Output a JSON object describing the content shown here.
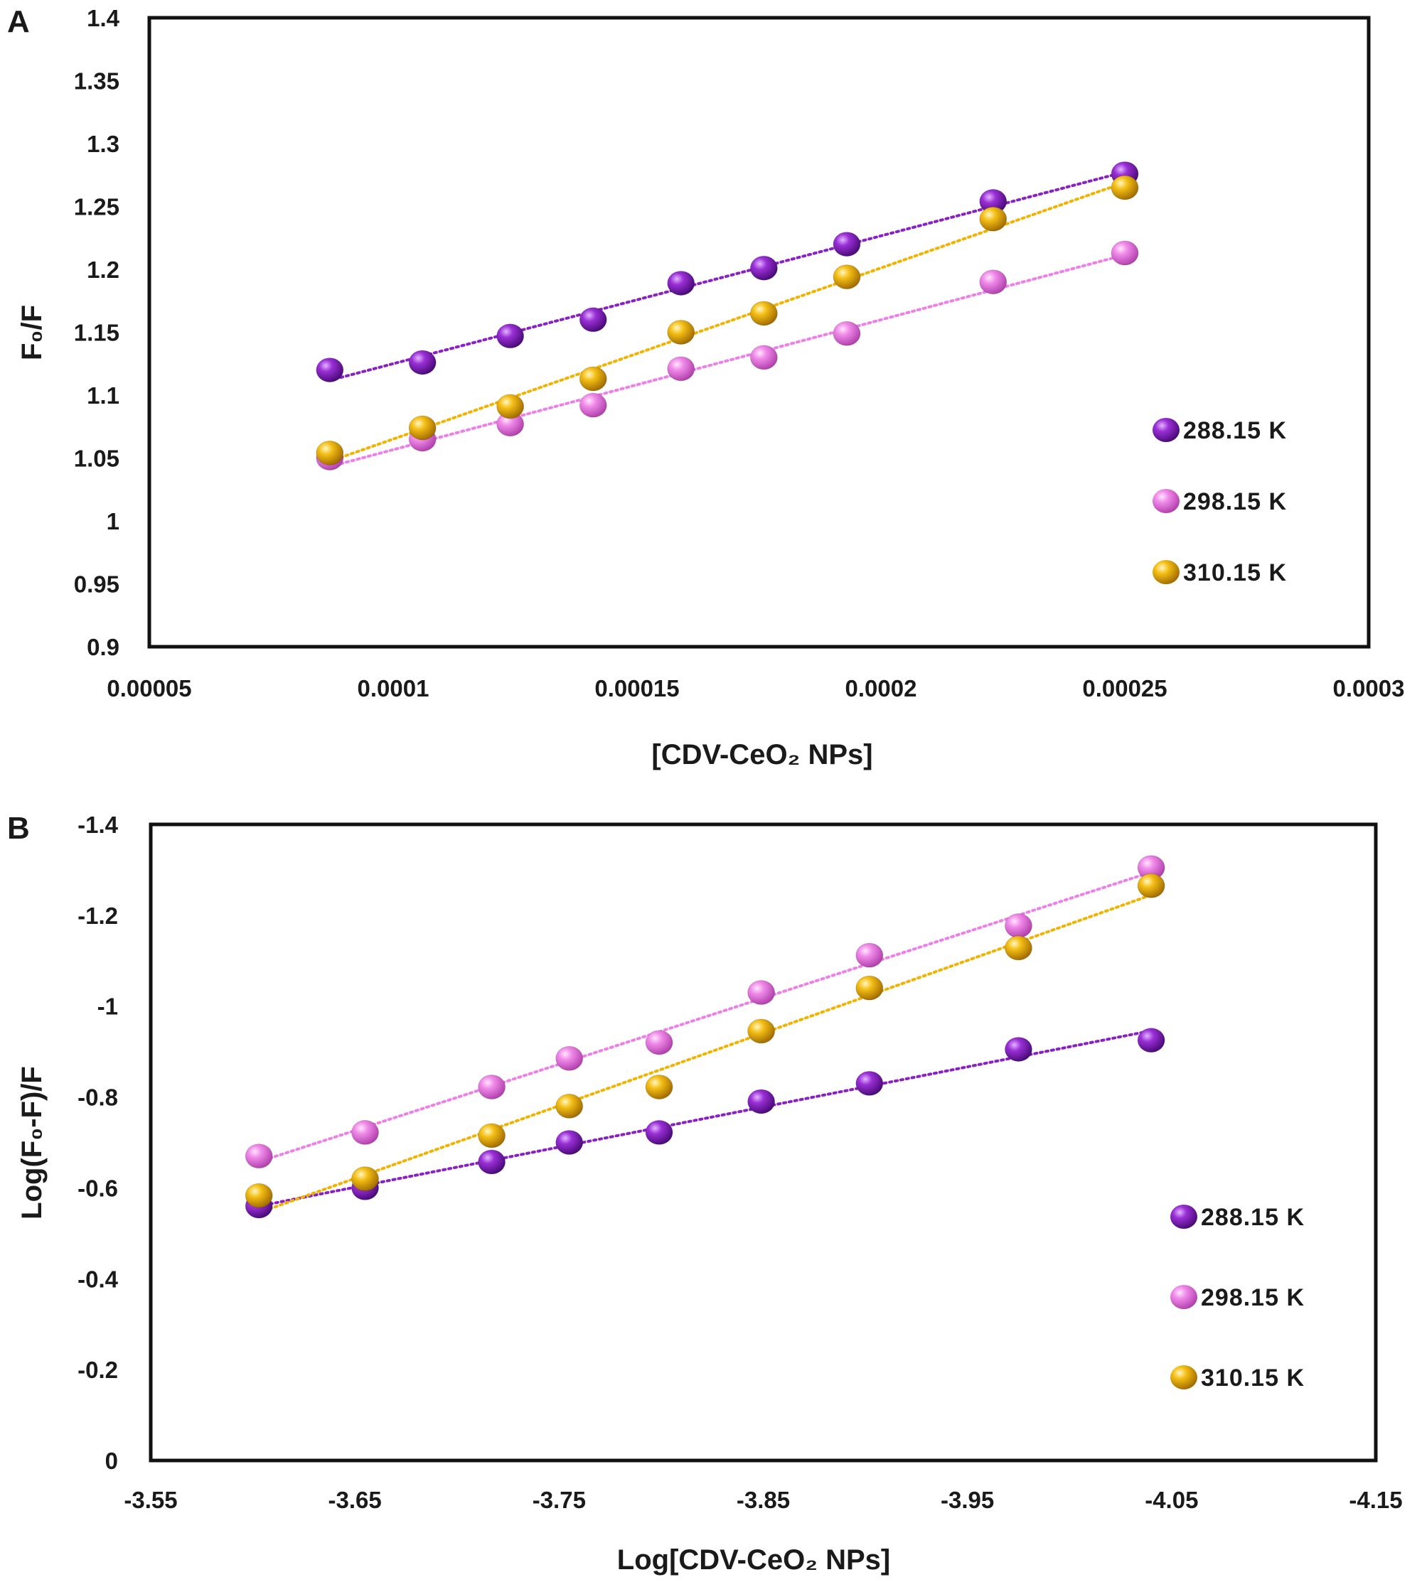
{
  "colors": {
    "288.15 K": "#8a1fc4",
    "298.15 K": "#ef7fe8",
    "310.15 K": "#f2b300"
  },
  "chart_data": [
    {
      "panel": "A",
      "type": "scatter",
      "xlabel": "[CDV-CeO₂ NPs]",
      "ylabel": "F₀/F",
      "xlim": [
        5e-05,
        0.0003
      ],
      "ylim": [
        0.9,
        1.4
      ],
      "x_ticks": [
        "0.00005",
        "0.0001",
        "0.00015",
        "0.0002",
        "0.00025",
        "0.0003"
      ],
      "y_ticks": [
        "0.9",
        "0.95",
        "1",
        "1.05",
        "1.1",
        "1.15",
        "1.2",
        "1.25",
        "1.3",
        "1.35",
        "1.4"
      ],
      "grid": false,
      "legend": "right",
      "trendline": "linear, dotted",
      "x": [
        8.7e-05,
        0.000106,
        0.000124,
        0.000141,
        0.000159,
        0.000176,
        0.000193,
        0.000223,
        0.00025
      ],
      "series": [
        {
          "name": "288.15 K",
          "values": [
            1.12,
            1.126,
            1.147,
            1.16,
            1.189,
            1.201,
            1.22,
            1.254,
            1.276
          ]
        },
        {
          "name": "298.15 K",
          "values": [
            1.05,
            1.065,
            1.077,
            1.092,
            1.121,
            1.13,
            1.149,
            1.19,
            1.213
          ]
        },
        {
          "name": "310.15 K",
          "values": [
            1.054,
            1.074,
            1.091,
            1.113,
            1.15,
            1.165,
            1.194,
            1.24,
            1.265
          ]
        }
      ]
    },
    {
      "panel": "B",
      "type": "scatter",
      "xlabel": "Log[CDV-CeO₂ NPs]",
      "ylabel": "Log(F₀-F)/F",
      "xlim": [
        -3.55,
        -4.15
      ],
      "ylim": [
        0,
        -1.4
      ],
      "x_ticks": [
        "-3.55",
        "-3.65",
        "-3.75",
        "-3.85",
        "-3.95",
        "-4.05",
        "-4.15"
      ],
      "y_ticks": [
        "0",
        "-0.2",
        "-0.4",
        "-0.6",
        "-0.8",
        "-1",
        "-1.2",
        "-1.4"
      ],
      "grid": false,
      "legend": "right",
      "trendline": "linear, dotted",
      "x": [
        -3.603,
        -3.655,
        -3.717,
        -3.755,
        -3.799,
        -3.849,
        -3.902,
        -3.975,
        -4.04
      ],
      "series": [
        {
          "name": "288.15 K",
          "values": [
            -0.56,
            -0.6,
            -0.657,
            -0.7,
            -0.722,
            -0.79,
            -0.83,
            -0.905,
            -0.925
          ]
        },
        {
          "name": "298.15 K",
          "values": [
            -0.67,
            -0.722,
            -0.822,
            -0.885,
            -0.92,
            -1.03,
            -1.112,
            -1.177,
            -1.305
          ]
        },
        {
          "name": "310.15 K",
          "values": [
            -0.583,
            -0.62,
            -0.715,
            -0.78,
            -0.822,
            -0.945,
            -1.04,
            -1.128,
            -1.265
          ]
        }
      ]
    }
  ]
}
